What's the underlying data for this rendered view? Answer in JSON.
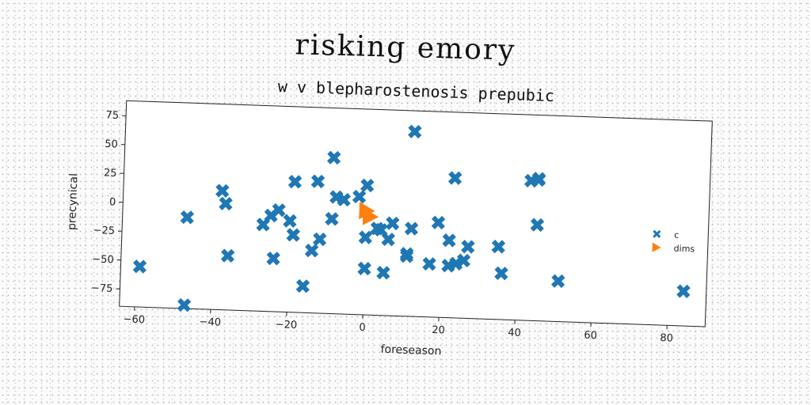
{
  "figure_title": "risking emory",
  "chart_data": {
    "type": "scatter",
    "title": "w v blepharostenosis prepubic",
    "xlabel": "foreseason",
    "ylabel": "precynical",
    "xlim": [
      -64,
      90
    ],
    "ylim": [
      -90,
      88
    ],
    "xticks": [
      -60,
      -40,
      -20,
      0,
      20,
      40,
      60,
      80
    ],
    "yticks": [
      -75,
      -50,
      -25,
      0,
      25,
      50,
      75
    ],
    "xtick_labels": [
      "−60",
      "−40",
      "−20",
      "0",
      "20",
      "40",
      "60",
      "80"
    ],
    "ytick_labels": [
      "−75",
      "−50",
      "−25",
      "0",
      "25",
      "50",
      "75"
    ],
    "legend_position": "right",
    "series": [
      {
        "name": "c",
        "marker": "x",
        "color": "#1f77b4",
        "points": [
          [
            -59,
            -55
          ],
          [
            -47,
            -11
          ],
          [
            -47,
            -87
          ],
          [
            -38,
            13
          ],
          [
            -37,
            2
          ],
          [
            -36,
            -43
          ],
          [
            -27,
            -15
          ],
          [
            -25,
            -7
          ],
          [
            -23,
            -2
          ],
          [
            -24,
            -44
          ],
          [
            -19,
            23
          ],
          [
            -20,
            -11
          ],
          [
            -19,
            -23
          ],
          [
            -16,
            -67
          ],
          [
            -14,
            -36
          ],
          [
            -13,
            24
          ],
          [
            -12,
            -26
          ],
          [
            -9,
            45
          ],
          [
            -9,
            -8
          ],
          [
            -8,
            11
          ],
          [
            -6,
            9
          ],
          [
            -2,
            12
          ],
          [
            0,
            22
          ],
          [
            0,
            -23
          ],
          [
            0,
            -50
          ],
          [
            3,
            -15
          ],
          [
            4,
            -16
          ],
          [
            5,
            -53
          ],
          [
            6,
            -24
          ],
          [
            7,
            -10
          ],
          [
            11,
            -36
          ],
          [
            11,
            -38
          ],
          [
            12,
            -14
          ],
          [
            12,
            70
          ],
          [
            17,
            -44
          ],
          [
            19,
            -8
          ],
          [
            22,
            -23
          ],
          [
            22,
            -45
          ],
          [
            24,
            -43
          ],
          [
            23,
            31
          ],
          [
            26,
            -40
          ],
          [
            27,
            -28
          ],
          [
            35,
            -27
          ],
          [
            36,
            -50
          ],
          [
            43,
            31
          ],
          [
            45,
            32
          ],
          [
            45,
            33
          ],
          [
            45,
            -7
          ],
          [
            51,
            -55
          ],
          [
            84,
            -60
          ]
        ]
      },
      {
        "name": "dims",
        "marker": "triangle-right",
        "color": "#ff7f0e",
        "points": [
          [
            0,
            0
          ],
          [
            1,
            -5
          ]
        ]
      }
    ]
  }
}
